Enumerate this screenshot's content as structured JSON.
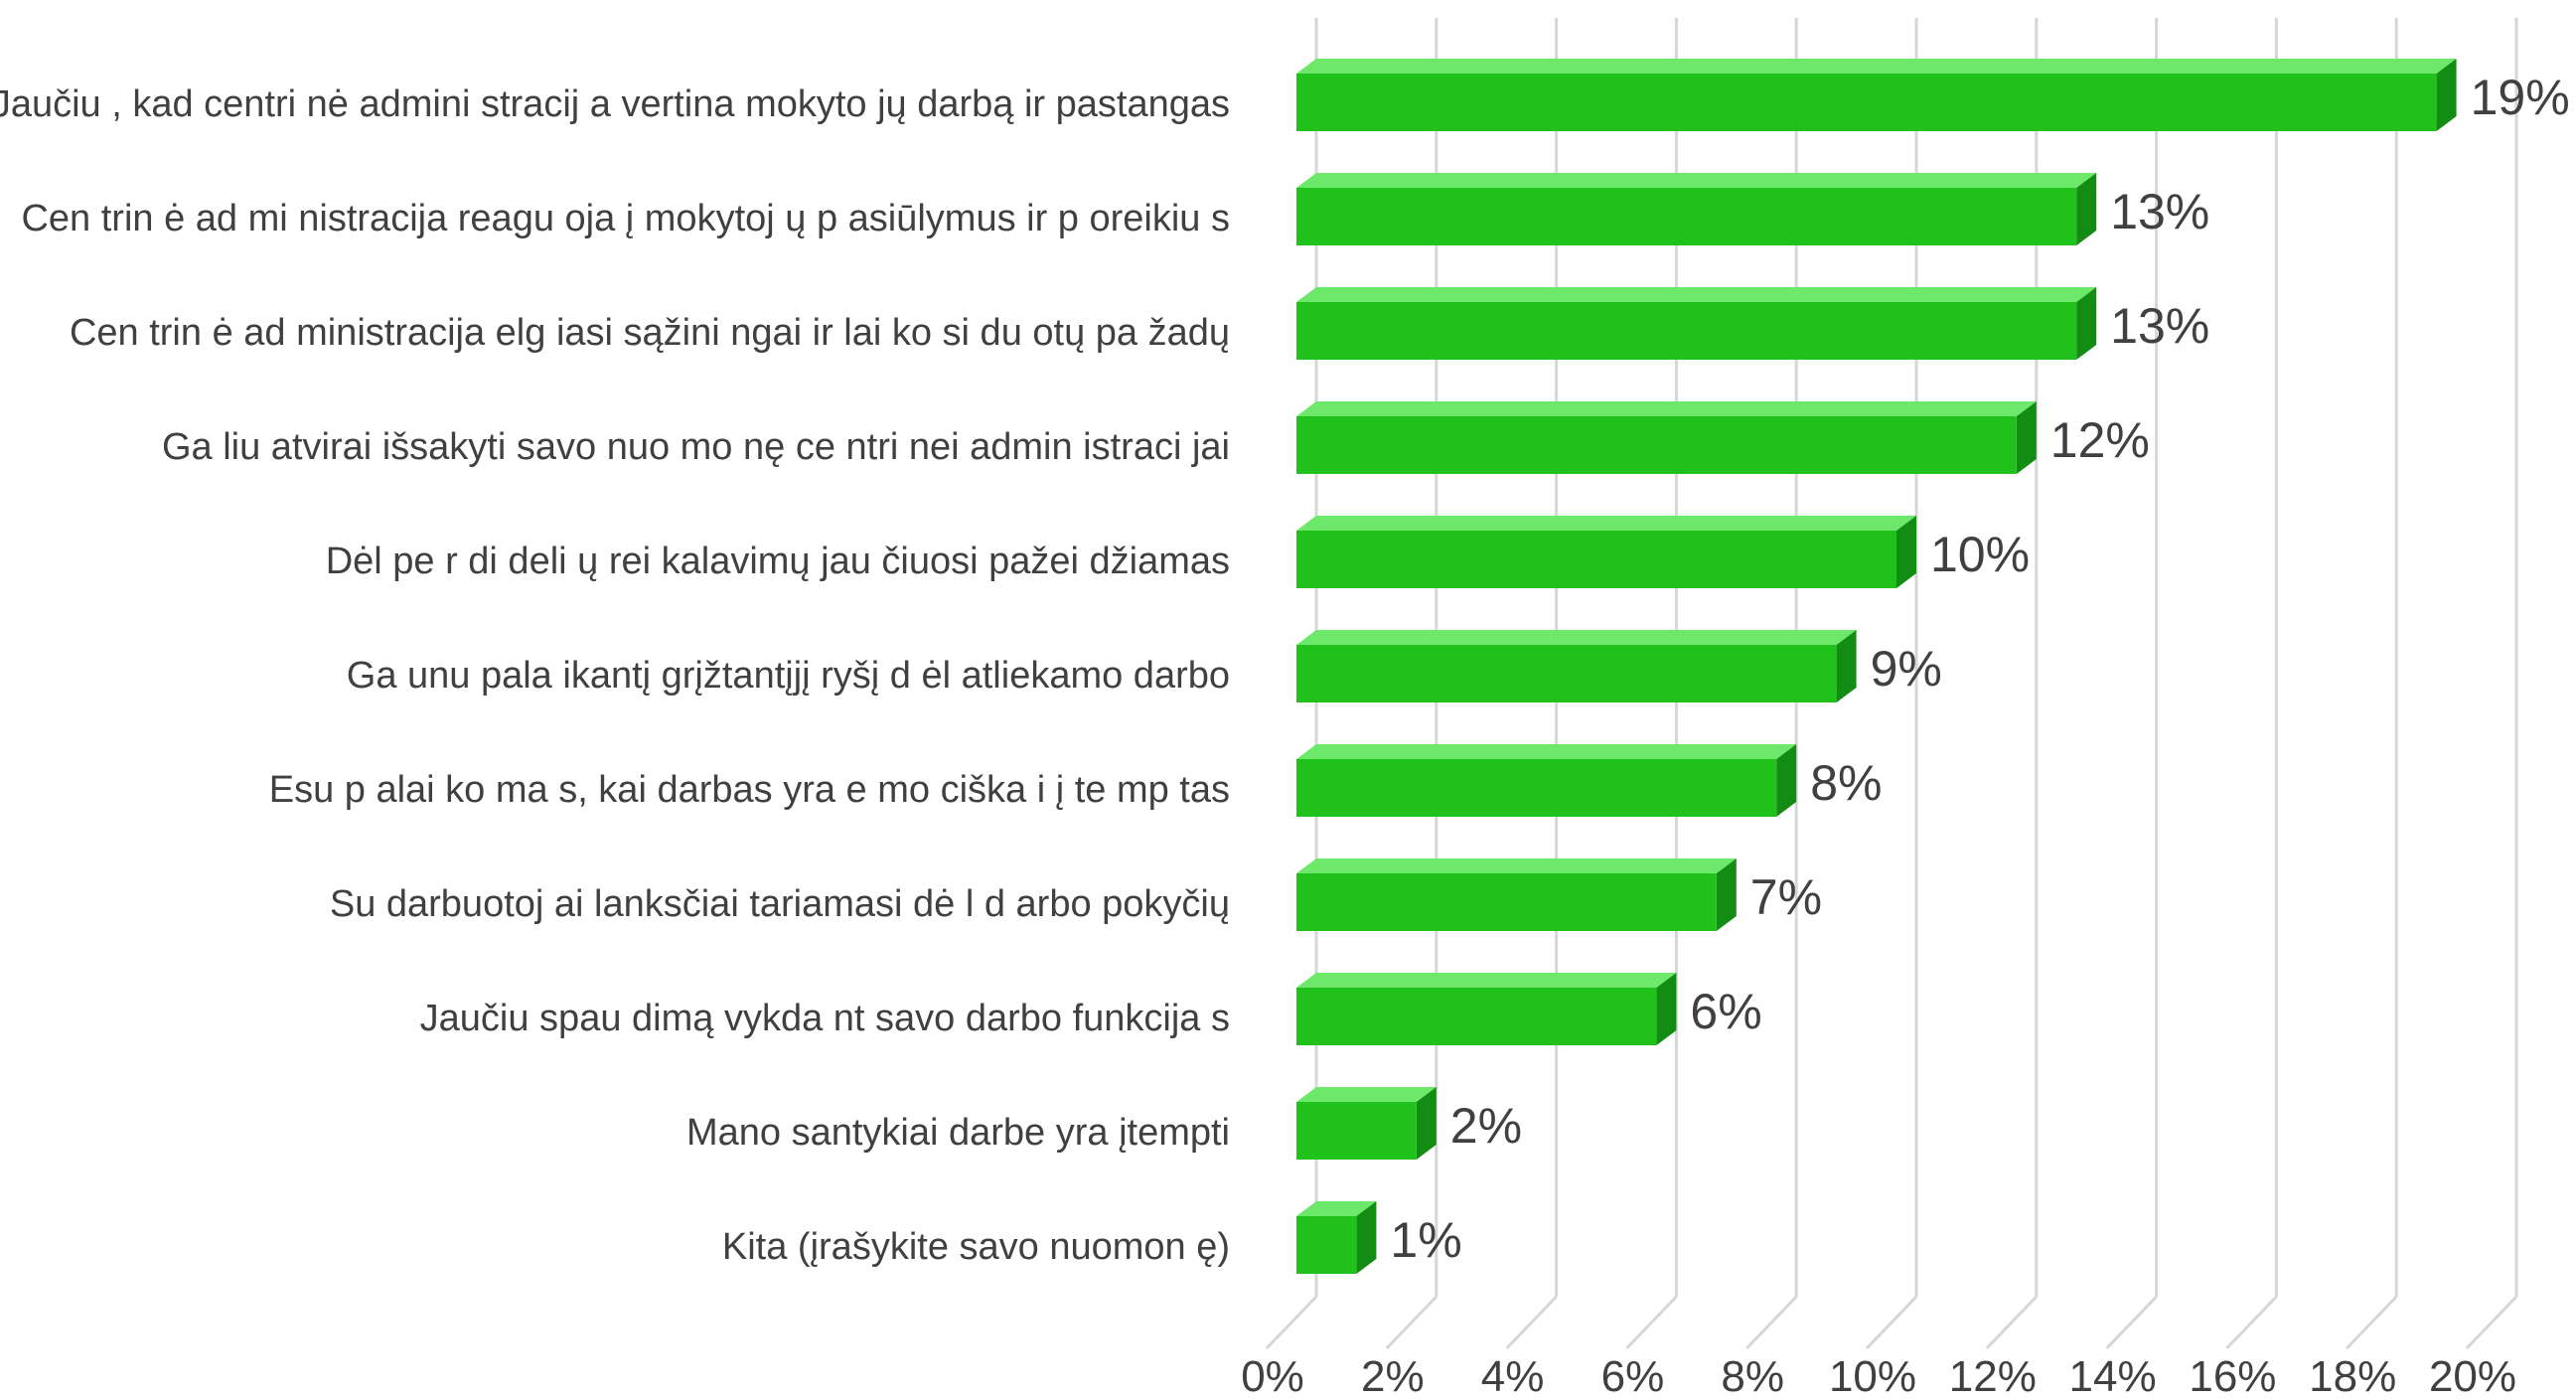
{
  "chart_data": {
    "type": "bar",
    "orientation": "horizontal",
    "style": "3d",
    "categories": [
      "Jaučiu , kad centri nė admini stracij a vertina mokyto jų darbą ir pastangas",
      "Cen trin ė ad mi nistracija reagu oja į mokytoj ų p asiūlymus ir p oreikiu s",
      "Cen trin ė ad ministracija elg iasi sąžini ngai ir lai ko si du otų pa žadų",
      "Ga liu atvirai išsakyti savo nuo mo nę ce ntri nei admin istraci jai",
      "Dėl pe r di deli ų rei kalavimų jau čiuosi pažei džiamas",
      "Ga unu pala ikantį grįžtantįjį ryšį d ėl atliekamo darbo",
      "Esu p alai ko ma s, kai darbas yra e mo ciška i į te mp tas",
      "Su darbuotoj ai lanksčiai tariamasi dė l d arbo pokyčių",
      "Jaučiu spau dimą vykda nt savo darbo funkcija s",
      "Mano santykiai darbe yra įtempti",
      "Kita (įrašykite savo nuomon ę)"
    ],
    "values": [
      19,
      13,
      13,
      12,
      10,
      9,
      8,
      7,
      6,
      2,
      1
    ],
    "value_labels": [
      "19%",
      "13%",
      "13%",
      "12%",
      "10%",
      "9%",
      "8%",
      "7%",
      "6%",
      "2%",
      "1%"
    ],
    "x_ticks": [
      0,
      2,
      4,
      6,
      8,
      10,
      12,
      14,
      16,
      18,
      20
    ],
    "x_tick_labels": [
      "0%",
      "2%",
      "4%",
      "6%",
      "8%",
      "10%",
      "12%",
      "14%",
      "16%",
      "18%",
      "20%"
    ],
    "xlim": [
      0,
      20
    ],
    "title": "",
    "xlabel": "",
    "ylabel": "",
    "grid": true,
    "legend": "none",
    "colors": {
      "bar_front": "#21c11c",
      "bar_top": "#6ee86a",
      "bar_side": "#128c12",
      "grid": "#d6d6d6",
      "text": "#404040"
    }
  }
}
